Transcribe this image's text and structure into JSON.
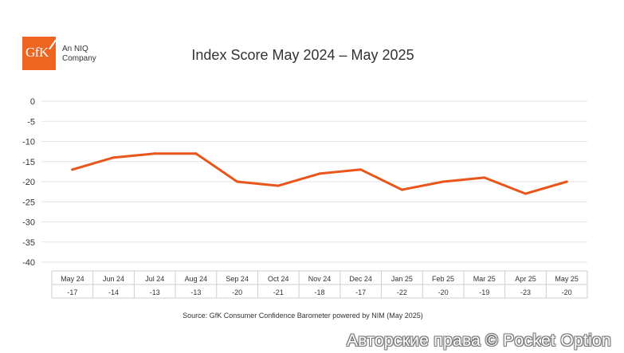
{
  "logo": {
    "mark": "GfK",
    "subtitle_line1": "An NIQ",
    "subtitle_line2": "Company"
  },
  "source_note": "Source: GfK Consumer Confidence Barometer powered by NIM (May 2025)",
  "watermark": "Авторские права © Pocket Option",
  "colors": {
    "line": "#e8561c",
    "grid": "#e3e3e3",
    "text": "#333333",
    "brand": "#ee6421"
  },
  "chart_data": {
    "type": "line",
    "title": "Index Score May 2024 – May 2025",
    "categories": [
      "May 24",
      "Jun 24",
      "Jul 24",
      "Aug 24",
      "Sep 24",
      "Oct 24",
      "Nov 24",
      "Dec 24",
      "Jan 25",
      "Feb 25",
      "Mar 25",
      "Apr 25",
      "May 25"
    ],
    "series": [
      {
        "name": "Index Score",
        "values": [
          -17,
          -14,
          -13,
          -13,
          -20,
          -21,
          -18,
          -17,
          -22,
          -20,
          -19,
          -23,
          -20
        ]
      }
    ],
    "value_labels": [
      "-17",
      "-14",
      "-13",
      "-13",
      "-20",
      "-21",
      "-18",
      "-17",
      "-22",
      "-20",
      "-19",
      "-23",
      "-20"
    ],
    "yticks": [
      "0",
      "-5",
      "-10",
      "-15",
      "-20",
      "-25",
      "-30",
      "-35",
      "-40"
    ],
    "ylim": [
      -40,
      0
    ],
    "xlabel": "",
    "ylabel": "",
    "grid": true,
    "table": true
  }
}
